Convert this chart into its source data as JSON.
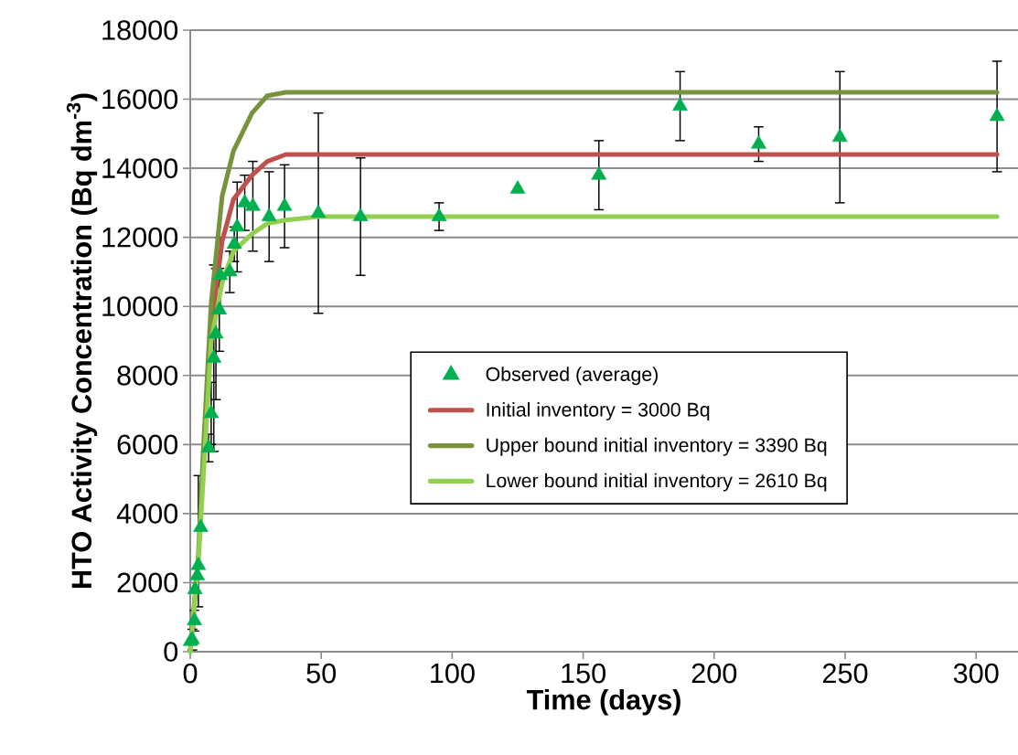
{
  "chart_data": {
    "type": "scatter",
    "xlabel": "Time (days)",
    "ylabel": "HTO Activity Concentration (Bq dm$^{-3}$)",
    "xlim": [
      0,
      316
    ],
    "xticks": [
      0,
      50,
      100,
      150,
      200,
      250,
      300
    ],
    "ylim": [
      0,
      18000
    ],
    "yticks": [
      0,
      2000,
      4000,
      6000,
      8000,
      10000,
      12000,
      14000,
      16000,
      18000
    ],
    "grid": "y",
    "legend": "center",
    "series": [
      {
        "name": "Observed (average)",
        "marker": "triangle",
        "color": "#00b050",
        "x": [
          0.1,
          0.8,
          1.6,
          1.8,
          2.7,
          3.1,
          4.0,
          7.0,
          8.0,
          9.0,
          9.8,
          11.1,
          11.5,
          15.1,
          16.8,
          17.9,
          20.8,
          23.9,
          30.1,
          36.0,
          48.9,
          65,
          95,
          125,
          156,
          187,
          217,
          248,
          308
        ],
        "values": [
          300,
          350,
          900,
          1800,
          2200,
          2500,
          3600,
          5900,
          6900,
          8500,
          9200,
          9900,
          10900,
          11000,
          11800,
          12300,
          13000,
          12900,
          12600,
          12900,
          12700,
          12600,
          12600,
          13400,
          13800,
          15800,
          14700,
          14900,
          15500
        ],
        "errors": [
          null,
          300,
          300,
          null,
          null,
          [
            1300,
            5100
          ],
          null,
          400,
          900,
          2700,
          1900,
          1200,
          1100,
          600,
          500,
          1300,
          800,
          1300,
          1300,
          1200,
          2900,
          1700,
          400,
          null,
          1000,
          1000,
          500,
          1900,
          1600
        ]
      },
      {
        "name": "Initial inventory = 3000 Bq",
        "type": "line",
        "marker": "none",
        "color": "#c0504d",
        "x": [
          5.1,
          8,
          12.2,
          16.5,
          23.6,
          29.4,
          36.5,
          49,
          65,
          308
        ],
        "values": [
          5500,
          9400,
          11900,
          13100,
          13800,
          14200,
          14400,
          14400,
          14400,
          14400
        ]
      },
      {
        "name": "Upper bound initial inventory = 3390 Bq",
        "type": "line",
        "marker": "none",
        "color": "#77933c",
        "x": [
          0,
          3.1,
          5.1,
          8,
          12.2,
          16.5,
          23.6,
          29.4,
          36.5,
          49,
          65,
          308
        ],
        "values": [
          0,
          2800,
          6000,
          10100,
          13200,
          14500,
          15600,
          16100,
          16200,
          16200,
          16200,
          16200
        ]
      },
      {
        "name": "Lower bound initial inventory = 2610 Bq",
        "type": "line",
        "marker": "none",
        "color": "#92d050",
        "x": [
          0,
          3.1,
          5.1,
          8,
          12.2,
          16.5,
          23.6,
          29.4,
          36.5,
          49,
          65,
          308
        ],
        "values": [
          0,
          2600,
          5200,
          9000,
          10700,
          11600,
          12100,
          12400,
          12500,
          12600,
          12600,
          12600
        ]
      }
    ]
  }
}
